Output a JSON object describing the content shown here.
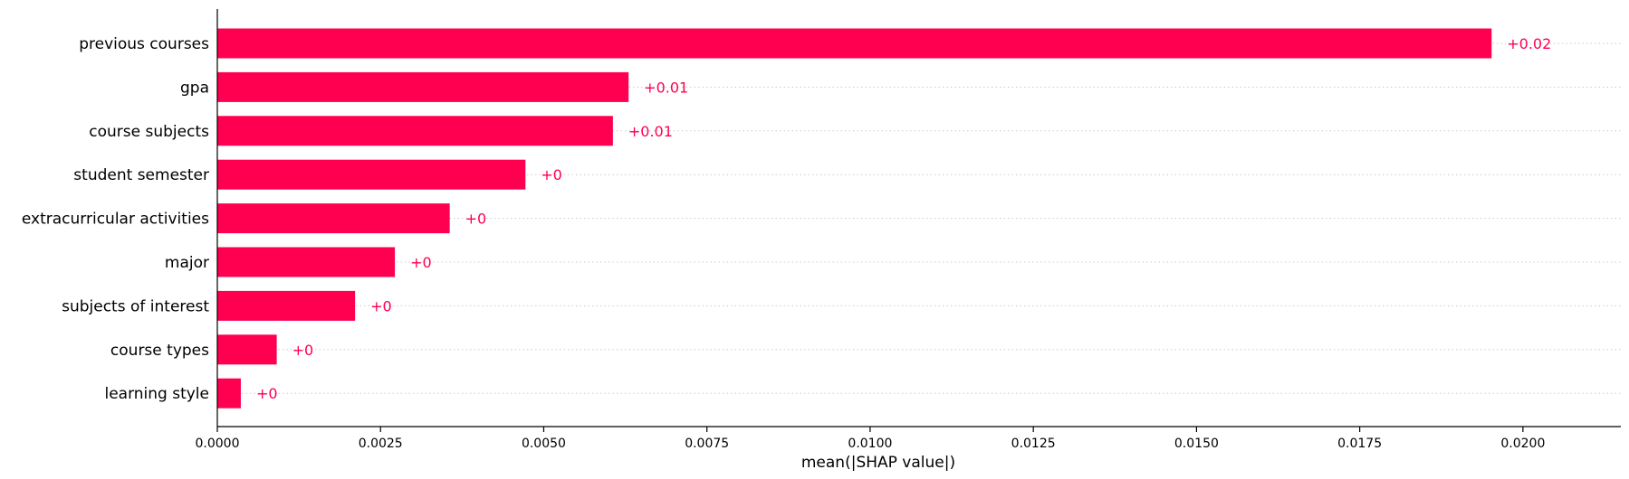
{
  "chart_data": {
    "type": "bar",
    "orientation": "horizontal",
    "categories": [
      "previous courses",
      "gpa",
      "course subjects",
      "student semester",
      "extracurricular activities",
      "major",
      "subjects of interest",
      "course types",
      "learning style"
    ],
    "values": [
      0.01952,
      0.0063,
      0.00606,
      0.00472,
      0.00356,
      0.00272,
      0.00211,
      0.00091,
      0.00036
    ],
    "data_labels": [
      "+0.02",
      "+0.01",
      "+0.01",
      "+0",
      "+0",
      "+0",
      "+0",
      "+0",
      "+0"
    ],
    "xlabel": "mean(|SHAP value|)",
    "xlim": [
      0,
      0.0215
    ],
    "xticks": [
      0.0,
      0.0025,
      0.005,
      0.0075,
      0.01,
      0.0125,
      0.015,
      0.0175,
      0.02
    ],
    "xtick_labels": [
      "0.0000",
      "0.0025",
      "0.0050",
      "0.0075",
      "0.0100",
      "0.0125",
      "0.0150",
      "0.0175",
      "0.0200"
    ],
    "grid": "horizontal dotted",
    "legend": "none",
    "colors": {
      "bar": "#ff0051",
      "label": "#ff0051",
      "axis": "#000000",
      "grid": "#cccccc"
    }
  }
}
